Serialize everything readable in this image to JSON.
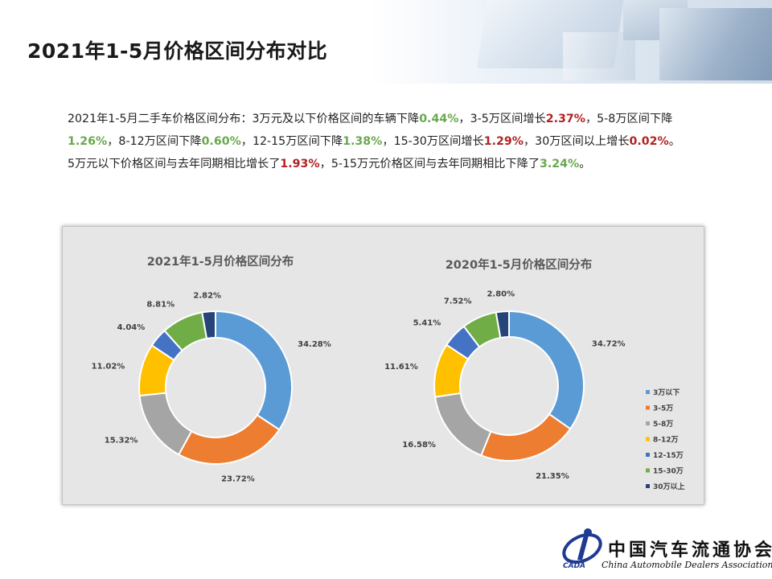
{
  "page": {
    "title": "2021年1-5月价格区间分布对比"
  },
  "description": {
    "line1": [
      {
        "t": "2021年1-5月二手车价格区间分布：3万元及以下价格区间的车辆下降",
        "c": ""
      },
      {
        "t": "0.44%",
        "c": "g"
      },
      {
        "t": "，3-5万区间增长",
        "c": ""
      },
      {
        "t": "2.37%",
        "c": "r"
      },
      {
        "t": "，5-8万区间下降",
        "c": ""
      },
      {
        "t": "1.26%",
        "c": "g"
      },
      {
        "t": "，8-12万区间下降",
        "c": ""
      },
      {
        "t": "0.60%",
        "c": "g"
      },
      {
        "t": "，12-15万区间下降",
        "c": ""
      },
      {
        "t": "1.38%",
        "c": "g"
      },
      {
        "t": "，15-30万区间增长",
        "c": ""
      },
      {
        "t": "1.29%",
        "c": "r"
      },
      {
        "t": "，30万区间以上增长",
        "c": ""
      },
      {
        "t": "0.02%",
        "c": "r"
      },
      {
        "t": "。",
        "c": ""
      }
    ],
    "line2": [
      {
        "t": "5万元以下价格区间与去年同期相比增长了",
        "c": ""
      },
      {
        "t": "1.93%",
        "c": "r"
      },
      {
        "t": "，5-15万元价格区间与去年同期相比下降了",
        "c": ""
      },
      {
        "t": "3.24%",
        "c": "g"
      },
      {
        "t": "。",
        "c": ""
      }
    ]
  },
  "chart_data": [
    {
      "type": "pie",
      "title": "2021年1-5月价格区间分布",
      "categories": [
        "3万以下",
        "3-5万",
        "5-8万",
        "8-12万",
        "12-15万",
        "15-30万",
        "30万以上"
      ],
      "values": [
        34.28,
        23.72,
        15.32,
        11.02,
        4.04,
        8.81,
        2.82
      ],
      "labels": [
        "34.28%",
        "23.72%",
        "15.32%",
        "11.02%",
        "4.04%",
        "8.81%",
        "2.82%"
      ],
      "colors": [
        "#5b9bd5",
        "#ed7d31",
        "#a5a5a5",
        "#ffc000",
        "#4472c4",
        "#70ad47",
        "#264478"
      ]
    },
    {
      "type": "pie",
      "title": "2020年1-5月价格区间分布",
      "categories": [
        "3万以下",
        "3-5万",
        "5-8万",
        "8-12万",
        "12-15万",
        "15-30万",
        "30万以上"
      ],
      "values": [
        34.72,
        21.35,
        16.58,
        11.61,
        5.41,
        7.52,
        2.8
      ],
      "labels": [
        "34.72%",
        "21.35%",
        "16.58%",
        "11.61%",
        "5.41%",
        "7.52%",
        "2.80%"
      ],
      "colors": [
        "#5b9bd5",
        "#ed7d31",
        "#a5a5a5",
        "#ffc000",
        "#4472c4",
        "#70ad47",
        "#264478"
      ],
      "legend": "right"
    }
  ],
  "logo": {
    "name_cn": "中国汽车流通协会",
    "name_en": "China Automobile Dealers Association",
    "abbr": "CADA"
  }
}
